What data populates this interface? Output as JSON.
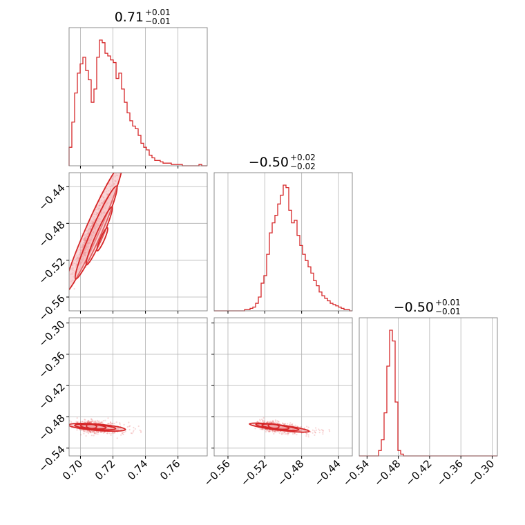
{
  "colors": {
    "accent": "#d62728",
    "fill": "#f4b6b9",
    "grid": "#b0b0b0",
    "frame": "#808080"
  },
  "chart_data": {
    "type": "corner",
    "parameters": [
      {
        "median": "0.71",
        "plus": "+0.01",
        "minus": "−0.01",
        "range": [
          0.693,
          0.778
        ]
      },
      {
        "median": "−0.50",
        "plus": "+0.02",
        "minus": "−0.02",
        "range": [
          -0.575,
          -0.425
        ]
      },
      {
        "median": "−0.50",
        "plus": "+0.01",
        "minus": "−0.01",
        "range": [
          -0.555,
          -0.29
        ]
      }
    ],
    "ticks": [
      {
        "values": [
          0.7,
          0.72,
          0.74,
          0.76
        ],
        "labels": [
          "0.70",
          "0.72",
          "0.74",
          "0.76"
        ]
      },
      {
        "values": [
          -0.56,
          -0.52,
          -0.48,
          -0.44
        ],
        "labels": [
          "−0.56",
          "−0.52",
          "−0.48",
          "−0.44"
        ]
      },
      {
        "values": [
          -0.54,
          -0.48,
          -0.42,
          -0.36,
          -0.3
        ],
        "labels": [
          "−0.54",
          "−0.48",
          "−0.42",
          "−0.36",
          "−0.30"
        ]
      }
    ],
    "histograms": [
      {
        "edges": [
          0.693,
          0.778
        ],
        "counts": [
          14,
          33,
          55,
          70,
          77,
          82,
          72,
          65,
          48,
          58,
          82,
          95,
          93,
          85,
          83,
          80,
          78,
          66,
          70,
          58,
          48,
          40,
          34,
          30,
          28,
          23,
          17,
          14,
          12,
          8,
          6,
          4,
          4,
          3,
          2,
          2,
          2,
          1,
          1,
          1,
          1,
          0,
          0,
          0,
          0,
          0,
          0,
          1,
          0,
          0
        ]
      },
      {
        "edges": [
          -0.575,
          -0.425
        ],
        "counts": [
          0,
          0,
          0,
          0,
          0,
          0,
          0,
          0,
          0,
          0,
          0,
          1,
          1,
          2,
          3,
          6,
          11,
          22,
          28,
          45,
          62,
          70,
          76,
          85,
          92,
          100,
          98,
          80,
          70,
          72,
          60,
          52,
          45,
          40,
          35,
          30,
          24,
          20,
          15,
          12,
          10,
          8,
          6,
          5,
          4,
          3,
          2,
          1,
          1,
          0
        ]
      },
      {
        "edges": [
          -0.555,
          -0.29
        ],
        "counts": [
          0,
          0,
          0,
          0,
          0,
          0,
          0,
          3,
          9,
          24,
          50,
          70,
          64,
          30,
          3,
          1,
          0,
          0,
          0,
          0,
          0,
          0,
          0,
          0,
          0,
          0,
          0,
          0,
          0,
          0,
          0,
          0,
          0,
          0,
          0,
          0,
          0,
          0,
          0,
          0,
          0,
          0,
          0,
          0,
          0,
          0,
          0,
          0,
          0,
          0
        ]
      }
    ],
    "pairs": [
      {
        "x_param": 0,
        "y_param": 1,
        "center": [
          0.7035,
          -0.503
        ],
        "slope": 4.0,
        "x_span": [
          0.695,
          0.73
        ],
        "width": 0.0075
      },
      {
        "x_param": 0,
        "y_param": 2,
        "center": [
          0.706,
          -0.499
        ],
        "slope": -0.25,
        "x_span": [
          0.695,
          0.73
        ],
        "width": 0.006
      },
      {
        "x_param": 1,
        "y_param": 2,
        "center": [
          -0.512,
          -0.499
        ],
        "slope": -0.22,
        "x_span": [
          -0.525,
          -0.46
        ],
        "width": 0.005
      }
    ]
  }
}
